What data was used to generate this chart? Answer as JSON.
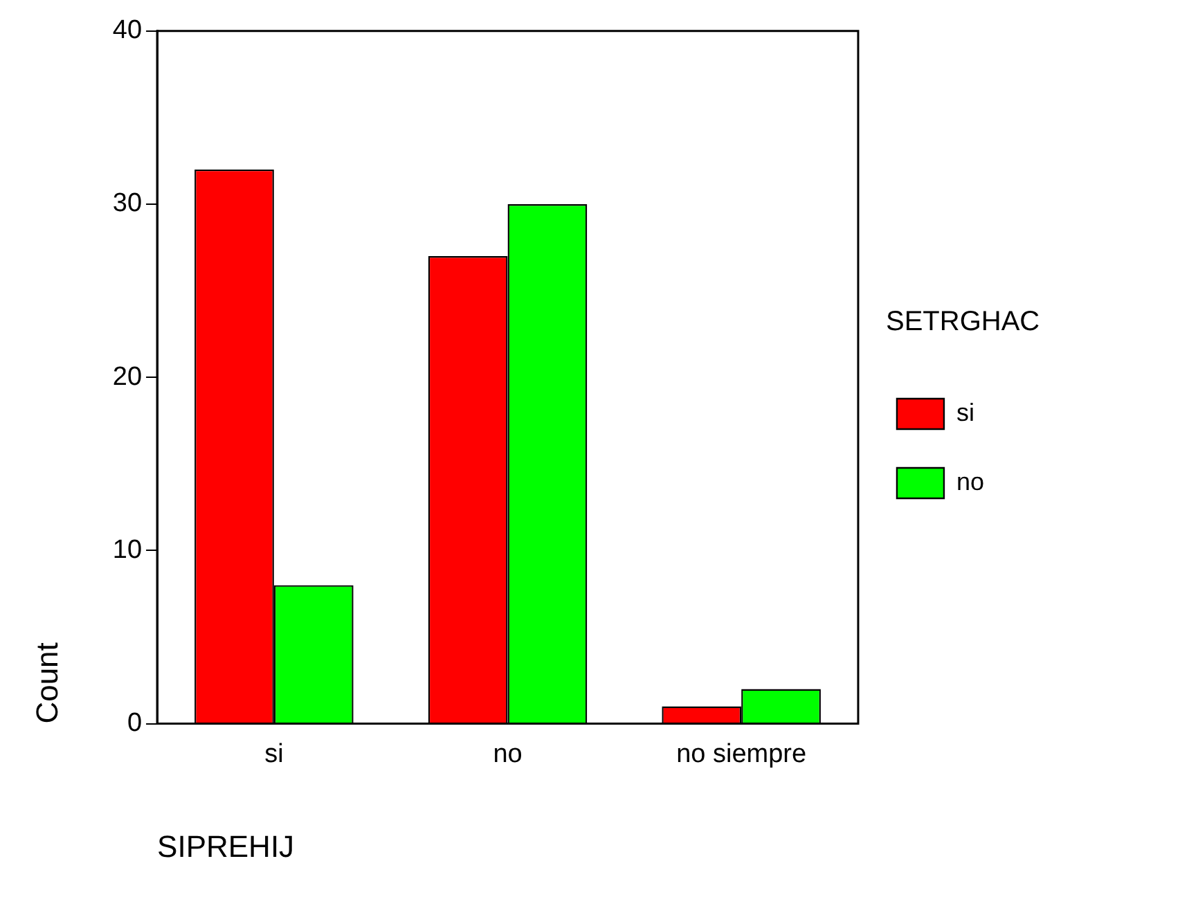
{
  "chart_data": {
    "type": "bar",
    "xlabel": "SIPREHIJ",
    "ylabel": "Count",
    "legend_title": "SETRGHAC",
    "legend": "right",
    "grid": false,
    "categories": [
      "si",
      "no",
      "no siempre"
    ],
    "series": [
      {
        "name": "si",
        "color": "#ff0000",
        "values": [
          32,
          27,
          1
        ]
      },
      {
        "name": "no",
        "color": "#00ff00",
        "values": [
          8,
          30,
          2
        ]
      }
    ],
    "ylim": [
      0,
      40
    ],
    "yticks": [
      0,
      10,
      20,
      30,
      40
    ]
  }
}
